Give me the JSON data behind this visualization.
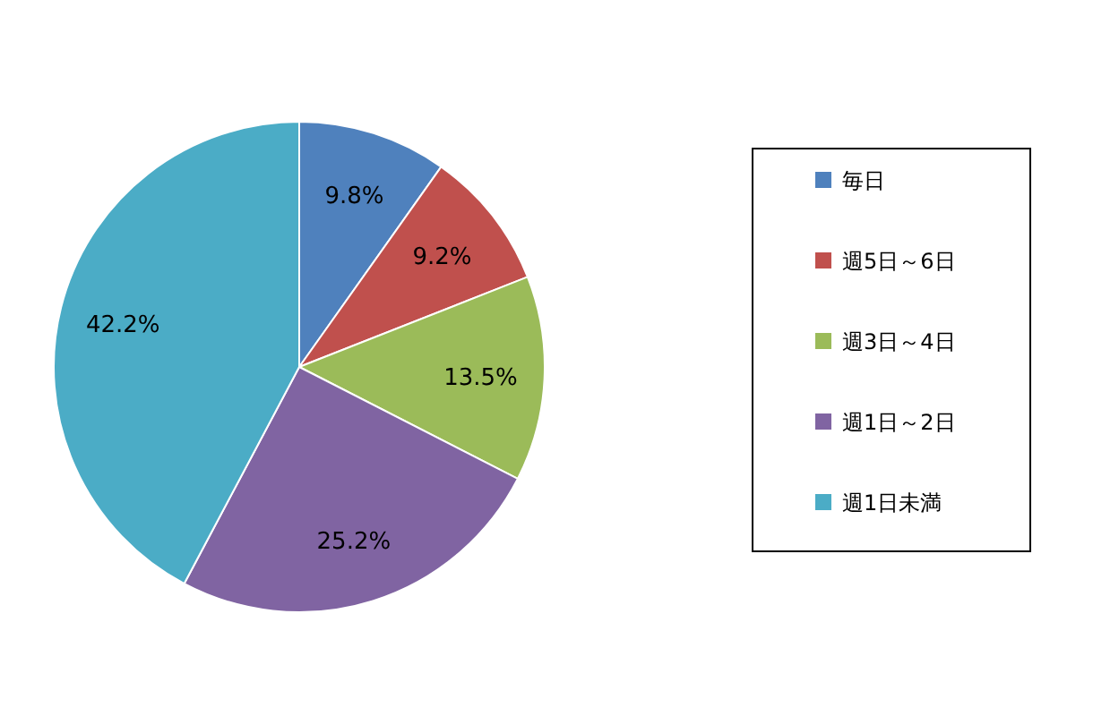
{
  "chart_data": {
    "type": "pie",
    "categories": [
      "毎日",
      "週5日～6日",
      "週3日～4日",
      "週1日～2日",
      "週1日未満"
    ],
    "values": [
      9.8,
      9.2,
      13.5,
      25.2,
      42.2
    ],
    "value_labels": [
      "9.8%",
      "9.2%",
      "13.5%",
      "25.2%",
      "42.2%"
    ],
    "colors": [
      "#4f81bd",
      "#c0504d",
      "#9bbb59",
      "#8064a2",
      "#4bacc6"
    ],
    "legend": "right"
  }
}
